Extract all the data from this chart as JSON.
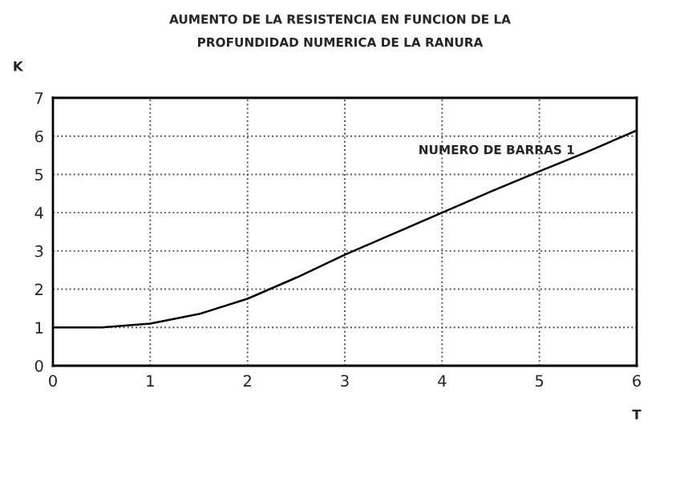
{
  "chart_data": {
    "type": "line",
    "title": "AUMENTO DE LA RESISTENCIA EN FUNCION DE LA\nPROFUNDIDAD NUMERICA DE LA RANURA",
    "xlabel": "T",
    "ylabel": "K",
    "annotations": [
      "NUMERO DE BARRAS 1"
    ],
    "x": [
      0,
      0.5,
      1,
      1.5,
      2,
      2.5,
      3,
      3.5,
      4,
      4.5,
      5,
      5.5,
      6
    ],
    "series": [
      {
        "color": "#000000",
        "values": [
          1,
          1,
          1.1,
          1.35,
          1.75,
          2.3,
          2.9,
          3.45,
          4.0,
          4.55,
          5.08,
          5.6,
          6.15
        ]
      }
    ],
    "xlim": [
      0,
      6
    ],
    "ylim": [
      0,
      7
    ],
    "xticks": [
      0,
      1,
      2,
      3,
      4,
      5,
      6
    ],
    "yticks": [
      0,
      1,
      2,
      3,
      4,
      5,
      6,
      7
    ],
    "grid": true,
    "legend": false,
    "marker": "none",
    "line_style": "solid"
  }
}
